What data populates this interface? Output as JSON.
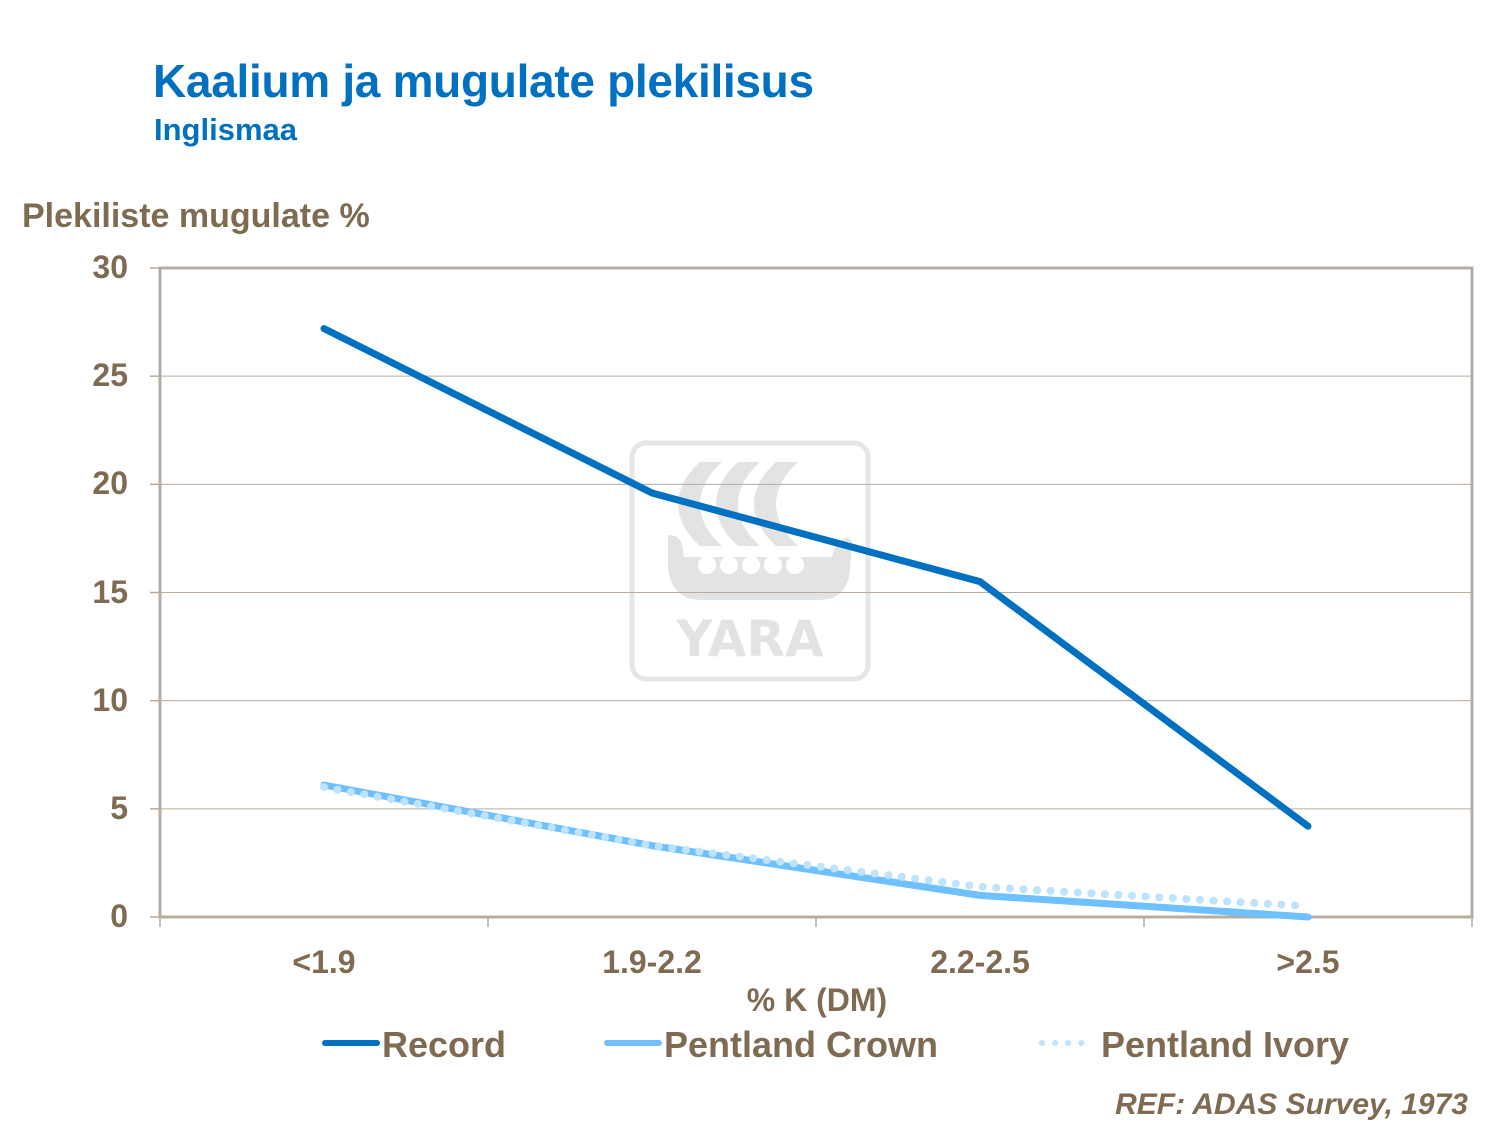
{
  "header": {
    "title": "Kaalium ja mugulate plekilisus",
    "subtitle": "Inglismaa"
  },
  "axis": {
    "y_label": "Plekiliste mugulate %",
    "y_ticks": [
      "30",
      "25",
      "20",
      "15",
      "10",
      "5",
      "0"
    ],
    "x_ticks": [
      "<1.9",
      "1.9-2.2",
      "2.2-2.5",
      ">2.5"
    ],
    "x_label": "% K (DM)"
  },
  "legend": {
    "items": [
      {
        "label": "Record",
        "style": "solid",
        "color": "#0070c0"
      },
      {
        "label": "Pentland Crown",
        "style": "solid",
        "color": "#6ec0ff"
      },
      {
        "label": "Pentland Ivory",
        "style": "dotted",
        "color": "#bde3ff"
      }
    ]
  },
  "watermark": {
    "text": "YARA"
  },
  "footer": {
    "reference": "REF: ADAS Survey,  1973"
  },
  "colors": {
    "title": "#0070c0",
    "axis_text": "#7f6a52",
    "axis_line": "#b8aca0",
    "record": "#0070c0",
    "pentland_crown": "#6ec0ff",
    "pentland_ivory": "#bde3ff"
  },
  "chart_data": {
    "type": "line",
    "title": "Kaalium ja mugulate plekilisus",
    "subtitle": "Inglismaa",
    "xlabel": "% K (DM)",
    "ylabel": "Plekiliste mugulate %",
    "categories": [
      "<1.9",
      "1.9-2.2",
      "2.2-2.5",
      ">2.5"
    ],
    "series": [
      {
        "name": "Record",
        "values": [
          27.2,
          19.6,
          15.5,
          4.2
        ],
        "line": "solid",
        "color": "#0070c0"
      },
      {
        "name": "Pentland Crown",
        "values": [
          6.1,
          3.3,
          1.0,
          0.0
        ],
        "line": "solid",
        "color": "#6ec0ff"
      },
      {
        "name": "Pentland Ivory",
        "values": [
          6.0,
          3.3,
          1.4,
          0.5
        ],
        "line": "dotted",
        "color": "#bde3ff"
      }
    ],
    "ylim": [
      0,
      30
    ],
    "yticks": [
      0,
      5,
      10,
      15,
      20,
      25,
      30
    ],
    "grid": true,
    "legend_position": "bottom",
    "annotation": "REF: ADAS Survey,  1973"
  }
}
